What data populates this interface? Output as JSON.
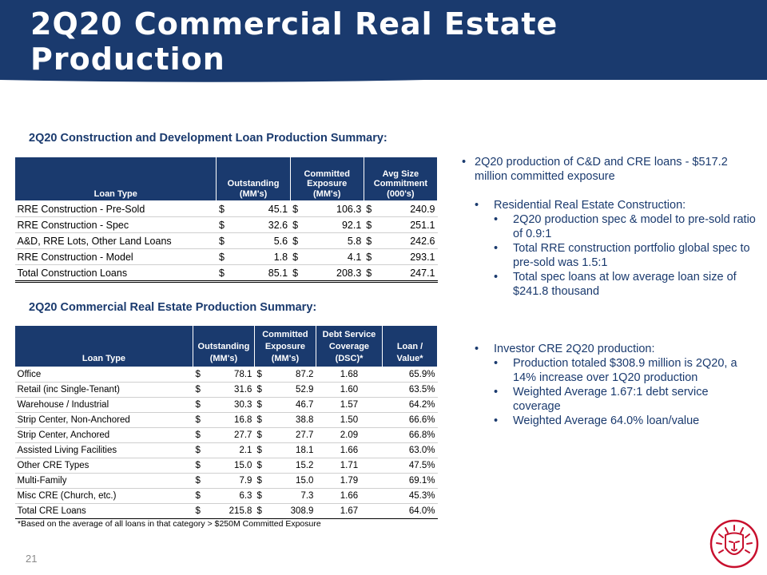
{
  "slide": {
    "title": "2Q20 Commercial Real Estate Production",
    "page_number": "21",
    "logo_icon": "lion-head-logo-icon",
    "colors": {
      "navy": "#1a3a6e",
      "logo_red": "#c8102e"
    }
  },
  "cd_section": {
    "heading": "2Q20 Construction and Development Loan Production Summary:",
    "headers": [
      "Loan Type",
      "Outstanding (MM's)",
      "Committed Exposure (MM's)",
      "Avg Size Commitment (000's)"
    ],
    "rows": [
      {
        "type": "RRE Construction - Pre-Sold",
        "cur1": "$",
        "outstanding": "45.1",
        "cur2": "$",
        "exposure": "106.3",
        "cur3": "$",
        "avg": "240.9"
      },
      {
        "type": "RRE Construction - Spec",
        "cur1": "$",
        "outstanding": "32.6",
        "cur2": "$",
        "exposure": "92.1",
        "cur3": "$",
        "avg": "251.1"
      },
      {
        "type": "A&D, RRE Lots, Other Land Loans",
        "cur1": "$",
        "outstanding": "5.6",
        "cur2": "$",
        "exposure": "5.8",
        "cur3": "$",
        "avg": "242.6"
      },
      {
        "type": "RRE Construction - Model",
        "cur1": "$",
        "outstanding": "1.8",
        "cur2": "$",
        "exposure": "4.1",
        "cur3": "$",
        "avg": "293.1"
      }
    ],
    "total": {
      "type": "Total Construction Loans",
      "cur1": "$",
      "outstanding": "85.1",
      "cur2": "$",
      "exposure": "208.3",
      "cur3": "$",
      "avg": "247.1"
    }
  },
  "cre_section": {
    "heading": "2Q20 Commercial Real Estate Production Summary:",
    "headers": [
      "Loan Type",
      "Outstanding (MM's)",
      "Committed Exposure (MM's)",
      "Debt Service Coverage (DSC)*",
      "Loan / Value*"
    ],
    "rows": [
      {
        "type": "Office",
        "cur1": "$",
        "outstanding": "78.1",
        "cur2": "$",
        "exposure": "87.2",
        "dsc": "1.68",
        "ltv": "65.9%"
      },
      {
        "type": "Retail (inc Single-Tenant)",
        "cur1": "$",
        "outstanding": "31.6",
        "cur2": "$",
        "exposure": "52.9",
        "dsc": "1.60",
        "ltv": "63.5%"
      },
      {
        "type": "Warehouse / Industrial",
        "cur1": "$",
        "outstanding": "30.3",
        "cur2": "$",
        "exposure": "46.7",
        "dsc": "1.57",
        "ltv": "64.2%"
      },
      {
        "type": "Strip Center, Non-Anchored",
        "cur1": "$",
        "outstanding": "16.8",
        "cur2": "$",
        "exposure": "38.8",
        "dsc": "1.50",
        "ltv": "66.6%"
      },
      {
        "type": "Strip Center, Anchored",
        "cur1": "$",
        "outstanding": "27.7",
        "cur2": "$",
        "exposure": "27.7",
        "dsc": "2.09",
        "ltv": "66.8%"
      },
      {
        "type": "Assisted Living Facilities",
        "cur1": "$",
        "outstanding": "2.1",
        "cur2": "$",
        "exposure": "18.1",
        "dsc": "1.66",
        "ltv": "63.0%"
      },
      {
        "type": "Other CRE Types",
        "cur1": "$",
        "outstanding": "15.0",
        "cur2": "$",
        "exposure": "15.2",
        "dsc": "1.71",
        "ltv": "47.5%"
      },
      {
        "type": "Multi-Family",
        "cur1": "$",
        "outstanding": "7.9",
        "cur2": "$",
        "exposure": "15.0",
        "dsc": "1.79",
        "ltv": "69.1%"
      },
      {
        "type": "Misc CRE (Church, etc.)",
        "cur1": "$",
        "outstanding": "6.3",
        "cur2": "$",
        "exposure": "7.3",
        "dsc": "1.66",
        "ltv": "45.3%"
      }
    ],
    "total": {
      "type": "Total CRE Loans",
      "cur1": "$",
      "outstanding": "215.8",
      "cur2": "$",
      "exposure": "308.9",
      "dsc": "1.67",
      "ltv": "64.0%"
    },
    "footnote": "*Based on the average of all loans in that category > $250M Committed Exposure"
  },
  "bullets": {
    "main": "2Q20 production of C&D and CRE loans - $517.2 million committed exposure",
    "rre_heading": "Residential Real Estate Construction:",
    "rre_items": [
      "2Q20 production spec & model to pre-sold ratio of 0.9:1",
      "Total RRE construction portfolio global spec to pre-sold was 1.5:1",
      "Total spec loans at low average loan size of $241.8 thousand"
    ],
    "cre_heading": "Investor  CRE 2Q20 production:",
    "cre_items": [
      "Production totaled $308.9 million is 2Q20, a 14% increase over 1Q20 production",
      "Weighted Average 1.67:1 debt service coverage",
      "Weighted Average 64.0% loan/value"
    ]
  }
}
